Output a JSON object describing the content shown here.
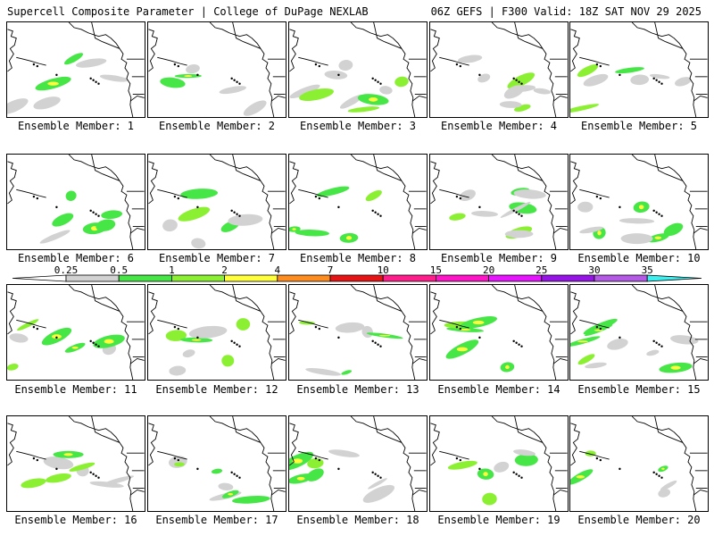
{
  "header": {
    "left_title": "Supercell Composite Parameter | College of DuPage NEXLAB",
    "right_title": "06Z GEFS | F300 Valid: 18Z SAT NOV 29 2025"
  },
  "members": [
    {
      "label": "Ensemble Member: 1"
    },
    {
      "label": "Ensemble Member: 2"
    },
    {
      "label": "Ensemble Member: 3"
    },
    {
      "label": "Ensemble Member: 4"
    },
    {
      "label": "Ensemble Member: 5"
    },
    {
      "label": "Ensemble Member: 6"
    },
    {
      "label": "Ensemble Member: 7"
    },
    {
      "label": "Ensemble Member: 8"
    },
    {
      "label": "Ensemble Member: 9"
    },
    {
      "label": "Ensemble Member: 10"
    },
    {
      "label": "Ensemble Member: 11"
    },
    {
      "label": "Ensemble Member: 12"
    },
    {
      "label": "Ensemble Member: 13"
    },
    {
      "label": "Ensemble Member: 14"
    },
    {
      "label": "Ensemble Member: 15"
    },
    {
      "label": "Ensemble Member: 16"
    },
    {
      "label": "Ensemble Member: 17"
    },
    {
      "label": "Ensemble Member: 18"
    },
    {
      "label": "Ensemble Member: 19"
    },
    {
      "label": "Ensemble Member: 20"
    }
  ],
  "colorbar": {
    "ticks": [
      "0.25",
      "0.5",
      "1",
      "2",
      "4",
      "7",
      "10",
      "15",
      "20",
      "25",
      "30",
      "35"
    ],
    "colors": [
      "#d2d2d2",
      "#46e646",
      "#8cf032",
      "#ffff3c",
      "#ff8c1e",
      "#e61414",
      "#ff1e8c",
      "#ff14c8",
      "#e614ff",
      "#9614e6",
      "#b45ae6",
      "#3cf0f0"
    ]
  }
}
